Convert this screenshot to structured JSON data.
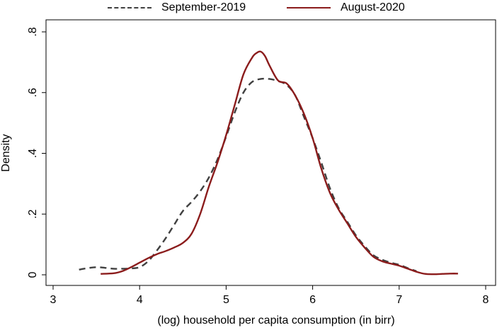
{
  "chart_data": {
    "type": "line",
    "title": "",
    "xlabel": "(log) household per capita consumption (in birr)",
    "ylabel": "Density",
    "xlim": [
      3,
      8
    ],
    "ylim": [
      0,
      0.8
    ],
    "x_ticks": [
      3,
      4,
      5,
      6,
      7,
      8
    ],
    "x_tick_labels": [
      "3",
      "4",
      "5",
      "6",
      "7",
      "8"
    ],
    "y_ticks": [
      0,
      0.2,
      0.4,
      0.6,
      0.8
    ],
    "y_tick_labels": [
      "0",
      ".2",
      ".4",
      ".6",
      ".8"
    ],
    "grid": false,
    "legend_position": "top",
    "series": [
      {
        "name": "September-2019",
        "color": "#404040",
        "style": "dashed",
        "x": [
          3.3,
          3.4,
          3.5,
          3.6,
          3.7,
          3.8,
          3.9,
          4.0,
          4.1,
          4.2,
          4.3,
          4.4,
          4.5,
          4.6,
          4.7,
          4.8,
          4.9,
          5.0,
          5.1,
          5.2,
          5.3,
          5.4,
          5.5,
          5.6,
          5.7,
          5.8,
          5.9,
          6.0,
          6.1,
          6.2,
          6.3,
          6.4,
          6.5,
          6.6,
          6.7,
          6.8,
          6.9,
          7.0,
          7.1,
          7.2
        ],
        "y": [
          0.017,
          0.022,
          0.025,
          0.023,
          0.02,
          0.02,
          0.021,
          0.025,
          0.045,
          0.08,
          0.12,
          0.165,
          0.21,
          0.24,
          0.275,
          0.32,
          0.38,
          0.455,
          0.535,
          0.6,
          0.635,
          0.645,
          0.645,
          0.638,
          0.625,
          0.59,
          0.52,
          0.45,
          0.37,
          0.285,
          0.22,
          0.175,
          0.13,
          0.095,
          0.065,
          0.05,
          0.04,
          0.033,
          0.022,
          0.012
        ]
      },
      {
        "name": "August-2020",
        "color": "#8b1c1c",
        "style": "solid",
        "x": [
          3.55,
          3.7,
          3.8,
          3.9,
          4.0,
          4.1,
          4.2,
          4.3,
          4.4,
          4.5,
          4.6,
          4.7,
          4.8,
          4.9,
          5.0,
          5.1,
          5.2,
          5.3,
          5.35,
          5.4,
          5.45,
          5.5,
          5.6,
          5.7,
          5.8,
          5.9,
          6.0,
          6.1,
          6.2,
          6.3,
          6.4,
          6.5,
          6.6,
          6.7,
          6.8,
          6.9,
          7.0,
          7.1,
          7.2,
          7.3,
          7.4,
          7.5,
          7.6,
          7.68
        ],
        "y": [
          0.003,
          0.005,
          0.012,
          0.025,
          0.04,
          0.055,
          0.068,
          0.078,
          0.09,
          0.105,
          0.135,
          0.2,
          0.29,
          0.37,
          0.46,
          0.56,
          0.66,
          0.715,
          0.73,
          0.735,
          0.72,
          0.69,
          0.64,
          0.63,
          0.59,
          0.53,
          0.45,
          0.35,
          0.27,
          0.215,
          0.17,
          0.125,
          0.09,
          0.06,
          0.045,
          0.037,
          0.03,
          0.02,
          0.01,
          0.003,
          0.002,
          0.003,
          0.004,
          0.004
        ]
      }
    ]
  }
}
